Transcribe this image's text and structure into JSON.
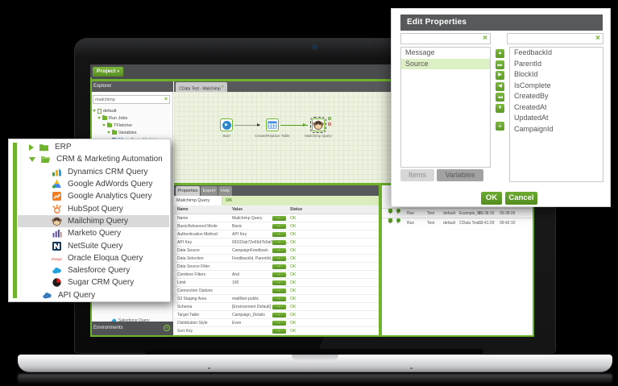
{
  "colors": {
    "accent_green": "#6fb22c",
    "dark_bar": "#58595b",
    "light_green_row": "#dcedbe",
    "selected_row_gray": "#d9d9d9",
    "canvas_bg": "#eef2e2",
    "status_ok_green": "#5d9b27"
  },
  "palette": {
    "items": [
      {
        "label": "ERP",
        "icon": "folder-closed-icon",
        "arrow": "right",
        "level": 0
      },
      {
        "label": "CRM & Marketing Automation",
        "icon": "folder-open-icon",
        "arrow": "down",
        "level": 0
      },
      {
        "label": "Dynamics CRM Query",
        "icon": "dynamics-crm-icon",
        "level": 1
      },
      {
        "label": "Google AdWords Query",
        "icon": "google-adwords-icon",
        "level": 1
      },
      {
        "label": "Google Analytics Query",
        "icon": "google-analytics-icon",
        "level": 1
      },
      {
        "label": "HubSpot Query",
        "icon": "hubspot-icon",
        "level": 1
      },
      {
        "label": "Mailchimp Query",
        "icon": "mailchimp-icon",
        "level": 1,
        "selected": true
      },
      {
        "label": "Marketo Query",
        "icon": "marketo-icon",
        "level": 1
      },
      {
        "label": "NetSuite Query",
        "icon": "netsuite-icon",
        "level": 1
      },
      {
        "label": "Oracle Eloqua Query",
        "icon": "eloqua-icon",
        "level": 1
      },
      {
        "label": "Salesforce Query",
        "icon": "salesforce-icon",
        "level": 1
      },
      {
        "label": "Sugar CRM Query",
        "icon": "sugarcrm-icon",
        "level": 1
      },
      {
        "label": "API Query",
        "icon": "api-cloud-icon",
        "level": 0.5
      }
    ]
  },
  "dialog": {
    "title": "Edit Properties",
    "clear_glyph": "×",
    "left_filter_value": "",
    "right_filter_value": "",
    "left_list": [
      {
        "label": "Message"
      },
      {
        "label": "Source",
        "selected": true
      }
    ],
    "transfer_buttons": [
      {
        "glyph": "▲",
        "name": "move-up"
      },
      {
        "glyph": "▶▶",
        "name": "move-all-right"
      },
      {
        "glyph": "▶",
        "name": "move-right"
      },
      {
        "glyph": "◀",
        "name": "move-left"
      },
      {
        "glyph": "◀◀",
        "name": "move-all-left"
      },
      {
        "glyph": "▼",
        "name": "move-down"
      },
      {
        "glyph": "+",
        "name": "add"
      }
    ],
    "right_list": [
      "FeedbackId",
      "ParentId",
      "BlockId",
      "IsComplete",
      "CreatedBy",
      "CreatedAt",
      "UpdatedAt",
      "CampaignId"
    ],
    "tabs": [
      {
        "label": "Items"
      },
      {
        "label": "Variables"
      }
    ],
    "ok_label": "OK",
    "cancel_label": "Cancel"
  },
  "app": {
    "project_button": {
      "label": "Project",
      "caret": "▾"
    },
    "tab_label": "CData Test - Mailchimp",
    "tab_close_glyph": "×",
    "explorer": {
      "title": "Explorer",
      "search_value": "mailchimp",
      "clear_glyph": "×",
      "tree": [
        {
          "label": "default",
          "icon": "project-icon",
          "level": 0
        },
        {
          "label": "Run Jobs",
          "icon": "folder-icon",
          "level": 1
        },
        {
          "label": "TFletcher",
          "icon": "folder-icon",
          "level": 2
        },
        {
          "label": "Variables",
          "icon": "folder-icon",
          "level": 3
        },
        {
          "label": "CData Test - Mailchimp",
          "icon": "job-icon",
          "level": 4,
          "selected": true
        }
      ],
      "components_visible": [
        {
          "label": "Salesforce Query",
          "icon": "salesforce-icon"
        },
        {
          "label": "Sugar CRM Query",
          "icon": "sugarcrm-icon"
        },
        {
          "label": "API Query",
          "icon": "api-cloud-icon"
        }
      ],
      "environments_label": "Environments",
      "environments_add_glyph": "+"
    },
    "canvas_nodes": [
      {
        "label": "Start",
        "icon": "start-icon"
      },
      {
        "label": "Create/Replace Table",
        "icon": "table-icon"
      },
      {
        "label": "Mailchimp Query",
        "icon": "mailchimp-icon",
        "selected": true
      }
    ],
    "properties": {
      "tabs": [
        "Properties",
        "Export",
        "Help"
      ],
      "component_name": "Mailchimp Query",
      "component_status": "OK",
      "columns": [
        "Name",
        "Value",
        "Status"
      ],
      "button_glyph": "...",
      "rows": [
        {
          "name": "Name",
          "value": "Mailchimp Query",
          "status": "OK"
        },
        {
          "name": "Basic/Advanced Mode",
          "value": "Basic",
          "status": "OK"
        },
        {
          "name": "Authentication Method",
          "value": "API Key",
          "status": "OK"
        },
        {
          "name": "API Key",
          "value": "69102ab72e66d7b0af1b2cf06...",
          "status": "OK"
        },
        {
          "name": "Data Source",
          "value": "CampaignFeedback",
          "status": "OK"
        },
        {
          "name": "Data Selection",
          "value": "FeedbackId, ParentId, BlockId...",
          "status": "OK"
        },
        {
          "name": "Data Source Filter",
          "value": "",
          "status": "OK"
        },
        {
          "name": "Combine Filters",
          "value": "And",
          "status": "OK"
        },
        {
          "name": "Limit",
          "value": "100",
          "status": "OK"
        },
        {
          "name": "Connection Options",
          "value": "",
          "status": "OK"
        },
        {
          "name": "S3 Staging Area",
          "value": "matillion-public",
          "status": "OK"
        },
        {
          "name": "Schema",
          "value": "[Environment Default]",
          "status": "OK"
        },
        {
          "name": "Target Table",
          "value": "Campaign_Details",
          "status": "OK"
        },
        {
          "name": "Distribution Style",
          "value": "Even",
          "status": "OK"
        },
        {
          "name": "Sort Key",
          "value": "",
          "status": "OK"
        }
      ]
    },
    "tasks": {
      "expand_glyph": "+",
      "check_glyph": "✓",
      "rows": [
        {
          "cells": [
            "Run",
            "Test",
            "default",
            "Example_M...",
            "09:38:16",
            "09:38:26"
          ]
        },
        {
          "cells": [
            "Run",
            "Test",
            "default",
            "CData Test...",
            "09:41:29",
            "09:42:10"
          ]
        }
      ]
    }
  }
}
